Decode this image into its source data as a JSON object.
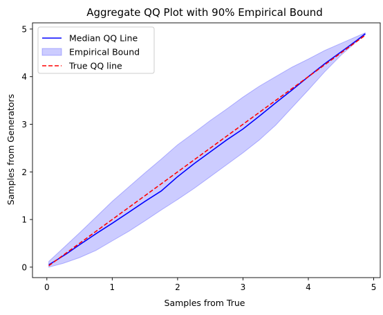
{
  "chart_data": {
    "type": "line",
    "title": "Aggregate QQ Plot with 90% Empirical Bound",
    "xlabel": "Samples from True",
    "ylabel": "Samples from Generators",
    "xlim": [
      -0.22,
      5.1
    ],
    "ylim": [
      -0.22,
      5.13
    ],
    "x_ticks": [
      0,
      1,
      2,
      3,
      4,
      5
    ],
    "y_ticks": [
      0,
      1,
      2,
      3,
      4,
      5
    ],
    "grid": false,
    "legend_position": "top-left",
    "series": [
      {
        "name": "Median QQ Line",
        "kind": "line",
        "style": "solid",
        "color": "#0000ff",
        "x": [
          0.03,
          0.15,
          0.3,
          0.5,
          0.75,
          1.0,
          1.25,
          1.5,
          1.75,
          2.0,
          2.25,
          2.5,
          2.75,
          3.0,
          3.25,
          3.5,
          3.75,
          4.0,
          4.25,
          4.5,
          4.75,
          4.87
        ],
        "y": [
          0.05,
          0.15,
          0.28,
          0.47,
          0.7,
          0.92,
          1.15,
          1.38,
          1.6,
          1.9,
          2.17,
          2.42,
          2.67,
          2.9,
          3.17,
          3.45,
          3.72,
          4.0,
          4.27,
          4.52,
          4.77,
          4.9
        ]
      },
      {
        "name": "Empirical Bound",
        "kind": "band",
        "color": "#0000ff",
        "opacity": 0.2,
        "x": [
          0.03,
          0.25,
          0.5,
          0.75,
          1.0,
          1.25,
          1.5,
          1.75,
          2.0,
          2.25,
          2.5,
          2.75,
          3.0,
          3.25,
          3.5,
          3.75,
          4.0,
          4.25,
          4.5,
          4.75,
          4.87
        ],
        "lower": [
          0.0,
          0.08,
          0.2,
          0.35,
          0.55,
          0.75,
          0.97,
          1.2,
          1.42,
          1.65,
          1.9,
          2.15,
          2.4,
          2.67,
          2.98,
          3.35,
          3.72,
          4.1,
          4.45,
          4.75,
          4.88
        ],
        "upper": [
          0.12,
          0.4,
          0.72,
          1.05,
          1.38,
          1.68,
          1.98,
          2.27,
          2.57,
          2.82,
          3.08,
          3.32,
          3.57,
          3.8,
          4.0,
          4.2,
          4.37,
          4.55,
          4.7,
          4.85,
          4.92
        ]
      },
      {
        "name": "True QQ line",
        "kind": "line",
        "style": "dashed",
        "color": "#ff0000",
        "x": [
          0.03,
          4.87
        ],
        "y": [
          0.03,
          4.87
        ]
      }
    ]
  }
}
